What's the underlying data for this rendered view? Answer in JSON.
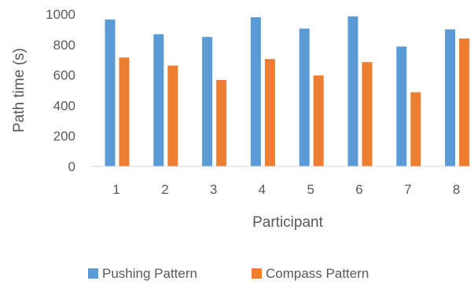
{
  "chart_data": {
    "type": "bar",
    "title": "",
    "xlabel": "Participant",
    "ylabel": "Path time (s)",
    "ylim": [
      0,
      1000
    ],
    "yticks": [
      0,
      200,
      400,
      600,
      800,
      1000
    ],
    "categories": [
      "1",
      "2",
      "3",
      "4",
      "5",
      "6",
      "7",
      "8"
    ],
    "series": [
      {
        "name": "Pushing Pattern",
        "color": "#5B9BD5",
        "values": [
          965,
          868,
          850,
          980,
          905,
          985,
          787,
          900
        ]
      },
      {
        "name": "Compass Pattern",
        "color": "#ED7D31",
        "values": [
          715,
          662,
          567,
          705,
          597,
          685,
          487,
          840
        ]
      }
    ],
    "grid": false,
    "legend_position": "bottom"
  }
}
